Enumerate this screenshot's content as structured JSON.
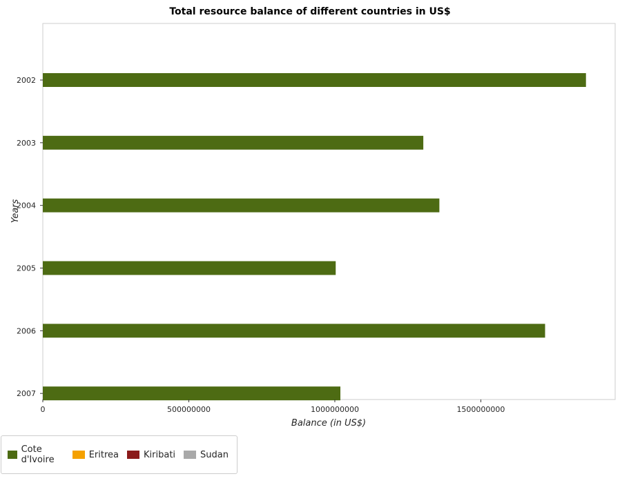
{
  "chart_data": {
    "type": "bar",
    "orientation": "horizontal",
    "title": "Total resource balance of different countries in US$",
    "xlabel": "Balance (in US$)",
    "ylabel": "Years",
    "categories": [
      "2002",
      "2003",
      "2004",
      "2005",
      "2006",
      "2007"
    ],
    "series": [
      {
        "name": "Cote d'Ivoire",
        "color": "#4d6b13",
        "values": [
          1860000000,
          1303000000,
          1358000000,
          1003000000,
          1720000000,
          1019000000
        ]
      },
      {
        "name": "Eritrea",
        "color": "#f5a100",
        "values": [
          0,
          0,
          0,
          0,
          0,
          0
        ]
      },
      {
        "name": "Kiribati",
        "color": "#8b1a1a",
        "values": [
          0,
          0,
          0,
          0,
          0,
          0
        ]
      },
      {
        "name": "Sudan",
        "color": "#a9a9a9",
        "values": [
          0,
          0,
          0,
          0,
          0,
          0
        ]
      }
    ],
    "xlim": [
      0,
      1960000000
    ],
    "xticks": [
      0,
      500000000,
      1000000000,
      1500000000
    ],
    "xtick_labels": [
      "0",
      "500000000",
      "1000000000",
      "1500000000"
    ],
    "grid": false,
    "legend_position": "bottom-left"
  }
}
